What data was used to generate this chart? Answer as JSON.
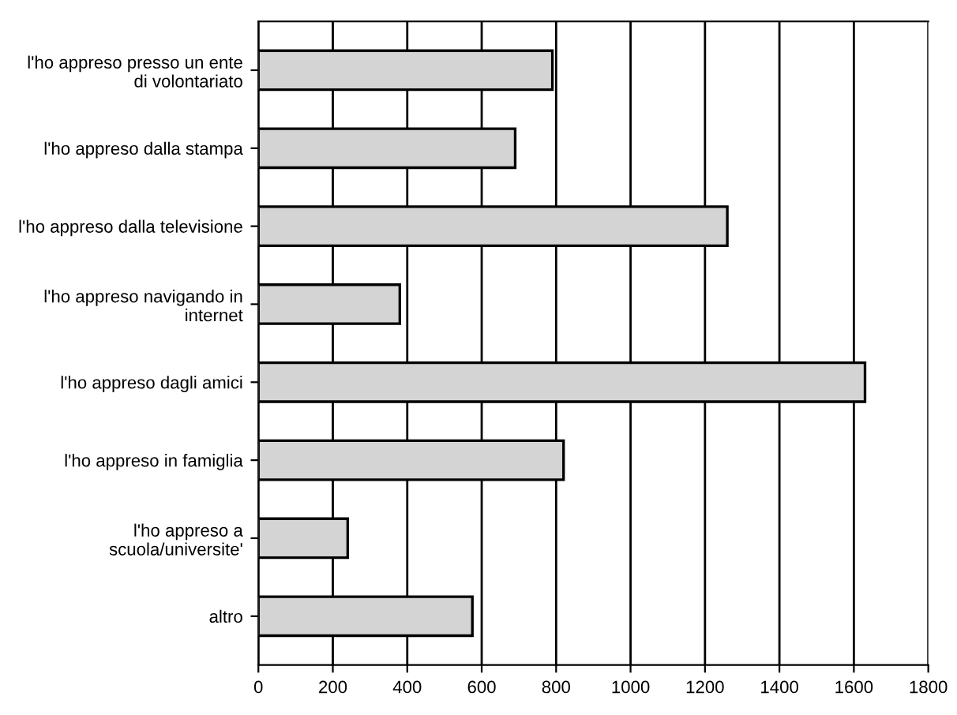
{
  "chart_data": {
    "type": "bar",
    "orientation": "horizontal",
    "categories": [
      "l'ho appreso presso un ente\ndi volontariato",
      "l'ho appreso dalla stampa",
      "l'ho appreso dalla televisione",
      "l'ho appreso navigando in\ninternet",
      "l'ho appreso dagli amici",
      "l'ho appreso in famiglia",
      "l'ho appreso a\nscuola/universite'",
      "altro"
    ],
    "values": [
      790,
      690,
      1260,
      380,
      1630,
      820,
      240,
      575
    ],
    "color": "#d4d4d4",
    "xlim": [
      0,
      1800
    ],
    "xticks": [
      0,
      200,
      400,
      600,
      800,
      1000,
      1200,
      1400,
      1600,
      1800
    ],
    "grid": "x",
    "legend": false
  }
}
